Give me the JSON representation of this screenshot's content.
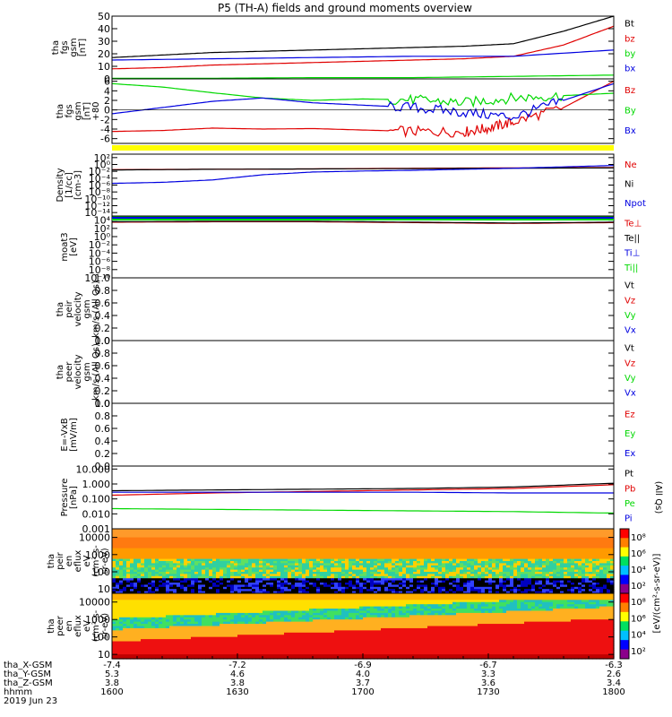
{
  "title": "P5 (TH-A) fields and ground moments overview",
  "colors": {
    "black": "#000000",
    "red": "#e00000",
    "green": "#00d800",
    "blue": "#0000e0",
    "yellow": "#ffff00"
  },
  "chart_data": [
    {
      "type": "line",
      "ylabel": [
        "tha",
        "fgs",
        "gsm",
        "[nT]"
      ],
      "ylim": [
        0,
        50
      ],
      "ticks": [
        "50",
        "40",
        "30",
        "20",
        "10",
        "0"
      ],
      "tick_values": [
        50,
        40,
        30,
        20,
        10,
        0
      ],
      "series": [
        {
          "name": "Bt",
          "color": "black",
          "x": [
            0,
            10,
            20,
            30,
            40,
            50,
            60,
            70,
            80,
            90,
            100
          ],
          "y": [
            17,
            19,
            21,
            22,
            23,
            24,
            25,
            26,
            28,
            38,
            50
          ]
        },
        {
          "name": "bz",
          "color": "red",
          "x": [
            0,
            10,
            20,
            30,
            40,
            50,
            60,
            70,
            80,
            90,
            100
          ],
          "y": [
            8,
            9,
            11,
            12,
            13,
            14,
            15,
            16,
            18,
            27,
            42
          ]
        },
        {
          "name": "by",
          "color": "green",
          "x": [
            0,
            20,
            40,
            60,
            80,
            100
          ],
          "y": [
            0.5,
            0.5,
            1,
            1,
            2,
            3
          ]
        },
        {
          "name": "bx",
          "color": "blue",
          "x": [
            0,
            20,
            40,
            60,
            80,
            100
          ],
          "y": [
            15,
            16,
            17,
            18,
            18,
            23
          ]
        }
      ]
    },
    {
      "type": "line",
      "ylabel": [
        "tha",
        "fgs",
        "gsm",
        "[nT]",
        "+80"
      ],
      "ylim": [
        -7,
        6.5
      ],
      "ticks": [
        "6",
        "4",
        "2",
        "0",
        "-2",
        "-4",
        "-6"
      ],
      "tick_values": [
        6,
        4,
        2,
        0,
        -2,
        -4,
        -6
      ],
      "series": [
        {
          "name": "Bz",
          "color": "red",
          "x": [
            0,
            10,
            20,
            30,
            40,
            50,
            60,
            70,
            75,
            80,
            90,
            100
          ],
          "y": [
            -4.5,
            -4.3,
            -3.8,
            -4,
            -3.9,
            -4.2,
            -4.5,
            -4.6,
            -3.8,
            -2.5,
            0.5,
            6
          ]
        },
        {
          "name": "By",
          "color": "green",
          "x": [
            0,
            10,
            20,
            30,
            40,
            50,
            60,
            70,
            80,
            90,
            100
          ],
          "y": [
            5.5,
            4.8,
            3.6,
            2.5,
            2,
            2.3,
            2.1,
            1.5,
            2.5,
            3,
            3.5
          ]
        },
        {
          "name": "Bx",
          "color": "blue",
          "x": [
            0,
            10,
            20,
            30,
            40,
            50,
            60,
            70,
            80,
            90,
            100
          ],
          "y": [
            -0.8,
            0.5,
            1.8,
            2.5,
            1.5,
            1,
            0.5,
            -0.5,
            -1.5,
            2,
            5.5
          ]
        }
      ]
    },
    {
      "type": "line",
      "ylabel": [
        "Density",
        "[1/cc]",
        "[cm-3]"
      ],
      "log": true,
      "ylim": [
        -15,
        3
      ],
      "ticks": [
        "10²",
        "10⁰",
        "10⁻²",
        "10⁻⁴",
        "10⁻⁶",
        "10⁻⁸",
        "10⁻¹⁰",
        "10⁻¹²",
        "10⁻¹⁴"
      ],
      "tick_values": [
        2,
        0,
        -2,
        -4,
        -6,
        -8,
        -10,
        -12,
        -14
      ],
      "series": [
        {
          "name": "Ne",
          "color": "red",
          "x": [
            0,
            20,
            40,
            60,
            80,
            100
          ],
          "y": [
            -1.5,
            -1.4,
            -1.3,
            -1.1,
            -1,
            -0.9
          ]
        },
        {
          "name": "Ni",
          "color": "black",
          "x": [
            0,
            20,
            40,
            60,
            80,
            100
          ],
          "y": [
            -1.6,
            -1.4,
            -1.3,
            -1.2,
            -1.1,
            -1
          ]
        },
        {
          "name": "Npot",
          "color": "blue",
          "x": [
            0,
            10,
            20,
            30,
            40,
            50,
            60,
            70,
            80,
            90,
            100
          ],
          "y": [
            -5.5,
            -5.2,
            -4.5,
            -3,
            -2.2,
            -1.9,
            -1.7,
            -1.4,
            -1.1,
            -0.7,
            -0.3
          ]
        }
      ]
    },
    {
      "type": "line",
      "ylabel": [
        "moat3",
        "[eV]"
      ],
      "log": true,
      "ylim": [
        -10,
        5
      ],
      "ticks": [
        "10⁴",
        "10²",
        "10⁰",
        "10⁻²",
        "10⁻⁴",
        "10⁻⁶",
        "10⁻⁸",
        "10⁻¹⁰"
      ],
      "tick_values": [
        4,
        2,
        0,
        -2,
        -4,
        -6,
        -8,
        -10
      ],
      "series": [
        {
          "name": "Te⊥",
          "color": "red",
          "x": [
            0,
            20,
            40,
            60,
            80,
            100
          ],
          "y": [
            3.5,
            3.6,
            3.6,
            3.4,
            3.2,
            3.4
          ]
        },
        {
          "name": "Te||",
          "color": "black",
          "x": [
            0,
            20,
            40,
            60,
            80,
            100
          ],
          "y": [
            3.6,
            3.7,
            3.7,
            3.5,
            3.3,
            3.5
          ]
        },
        {
          "name": "Ti⊥",
          "color": "blue",
          "x": [
            0,
            100
          ],
          "y": [
            4.7,
            4.7
          ]
        },
        {
          "name": "Ti||",
          "color": "green",
          "x": [
            0,
            100
          ],
          "y": [
            4.85,
            4.85
          ]
        }
      ]
    },
    {
      "type": "line",
      "ylabel": [
        "tha",
        "peir",
        "velocity",
        "gsm",
        "km/s (All Qs)"
      ],
      "ylim": [
        0,
        1
      ],
      "ticks": [
        "1.0",
        "0.8",
        "0.6",
        "0.4",
        "0.2",
        "0.0"
      ],
      "tick_values": [
        1,
        0.8,
        0.6,
        0.4,
        0.2,
        0
      ],
      "series": [
        {
          "name": "Vt",
          "color": "black"
        },
        {
          "name": "Vz",
          "color": "red"
        },
        {
          "name": "Vy",
          "color": "green"
        },
        {
          "name": "Vx",
          "color": "blue"
        }
      ]
    },
    {
      "type": "line",
      "ylabel": [
        "tha",
        "peer",
        "velocity",
        "gsm",
        "km/s (All Qs)"
      ],
      "ylim": [
        0,
        1
      ],
      "ticks": [
        "1.0",
        "0.8",
        "0.6",
        "0.4",
        "0.2",
        "0.0"
      ],
      "tick_values": [
        1,
        0.8,
        0.6,
        0.4,
        0.2,
        0
      ],
      "series": [
        {
          "name": "Vt",
          "color": "black"
        },
        {
          "name": "Vz",
          "color": "red"
        },
        {
          "name": "Vy",
          "color": "green"
        },
        {
          "name": "Vx",
          "color": "blue"
        }
      ]
    },
    {
      "type": "line",
      "ylabel": [
        "E=-VxB",
        "[mV/m]"
      ],
      "ylim": [
        0,
        1
      ],
      "ticks": [
        "1.0",
        "0.8",
        "0.6",
        "0.4",
        "0.2",
        "0.0"
      ],
      "tick_values": [
        1,
        0.8,
        0.6,
        0.4,
        0.2,
        0
      ],
      "series": [
        {
          "name": "Ez",
          "color": "red"
        },
        {
          "name": "Ey",
          "color": "green"
        },
        {
          "name": "Ex",
          "color": "blue"
        }
      ]
    },
    {
      "type": "line",
      "ylabel": [
        "Pressure",
        "[nPa]"
      ],
      "right_label": "(All Qs)",
      "log": true,
      "ylim": [
        -3,
        1.2
      ],
      "ticks": [
        "10.000",
        "1.000",
        "0.100",
        "0.010",
        "0.001"
      ],
      "tick_values": [
        1,
        0,
        -1,
        -2,
        -3
      ],
      "series": [
        {
          "name": "Pt",
          "color": "black",
          "x": [
            0,
            20,
            40,
            60,
            80,
            100
          ],
          "y": [
            -0.45,
            -0.4,
            -0.35,
            -0.3,
            -0.2,
            0.05
          ]
        },
        {
          "name": "Pb",
          "color": "red",
          "x": [
            0,
            20,
            40,
            60,
            80,
            100
          ],
          "y": [
            -0.75,
            -0.6,
            -0.5,
            -0.4,
            -0.3,
            -0.05
          ]
        },
        {
          "name": "Pe",
          "color": "green",
          "x": [
            0,
            20,
            40,
            60,
            80,
            100
          ],
          "y": [
            -1.65,
            -1.7,
            -1.75,
            -1.8,
            -1.85,
            -1.95
          ]
        },
        {
          "name": "Pi",
          "color": "blue",
          "x": [
            0,
            20,
            40,
            60,
            80,
            100
          ],
          "y": [
            -0.55,
            -0.55,
            -0.55,
            -0.55,
            -0.6,
            -0.6
          ]
        }
      ]
    },
    {
      "type": "heatmap",
      "ylabel": [
        "tha",
        "peir",
        "en",
        "eflux",
        "eV",
        "(cm²-s-",
        "sr-eV)"
      ],
      "ticks": [
        "10000",
        "1000",
        "100",
        "10"
      ],
      "tick_values": [
        4,
        3,
        2,
        1
      ],
      "ylim": [
        0.75,
        4.5
      ],
      "colorbar_ticks": [
        "10⁸",
        "10⁶",
        "10⁴",
        "10²"
      ],
      "colorbar_range": [
        1,
        9
      ]
    },
    {
      "type": "heatmap",
      "ylabel": [
        "tha",
        "peer",
        "en",
        "eflux",
        "eV",
        "(cm²-s-",
        "sr-eV)"
      ],
      "ticks": [
        "10000",
        "1000",
        "100",
        "10"
      ],
      "tick_values": [
        4,
        3,
        2,
        1
      ],
      "ylim": [
        0.75,
        4.5
      ],
      "colorbar_ticks": [
        "10⁸",
        "10⁶",
        "10⁴",
        "10²"
      ],
      "colorbar_range": [
        1,
        9
      ]
    }
  ],
  "colorbar_label": "[eV/(cm²-s-sr-eV)]",
  "colorbar_label_2": "(All Qs)",
  "xaxis": {
    "row_labels": [
      "tha_X-GSM",
      "tha_Y-GSM",
      "tha_Z-GSM",
      "hhmm",
      "2019 Jun 23"
    ],
    "columns": [
      {
        "values": [
          "-7.4",
          "5.3",
          "3.8",
          "1600"
        ]
      },
      {
        "values": [
          "-7.2",
          "4.6",
          "3.8",
          "1630"
        ]
      },
      {
        "values": [
          "-6.9",
          "4.0",
          "3.7",
          "1700"
        ]
      },
      {
        "values": [
          "-6.7",
          "3.3",
          "3.6",
          "1730"
        ]
      },
      {
        "values": [
          "-6.3",
          "2.6",
          "3.4",
          "1800"
        ]
      }
    ]
  }
}
